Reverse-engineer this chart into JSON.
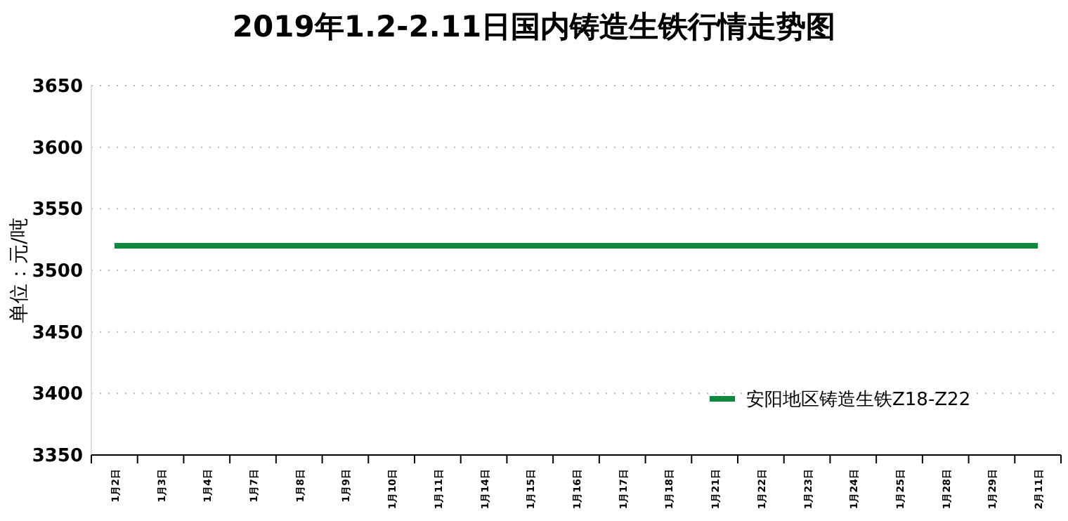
{
  "chart_data": {
    "type": "line",
    "title": "2019年1.2-2.11日国内铸造生铁行情走势图",
    "ylabel": "单位：元/吨",
    "categories": [
      "1月2日",
      "1月3日",
      "1月4日",
      "1月7日",
      "1月8日",
      "1月9日",
      "1月10日",
      "1月11日",
      "1月14日",
      "1月15日",
      "1月16日",
      "1月17日",
      "1月18日",
      "1月21日",
      "1月22日",
      "1月23日",
      "1月24日",
      "1月25日",
      "1月28日",
      "1月29日",
      "2月11日"
    ],
    "series": [
      {
        "name": "安阳地区铸造生铁Z18-Z22",
        "color": "#0f8a3c",
        "values": [
          3520,
          3520,
          3520,
          3520,
          3520,
          3520,
          3520,
          3520,
          3520,
          3520,
          3520,
          3520,
          3520,
          3520,
          3520,
          3520,
          3520,
          3520,
          3520,
          3520,
          3520
        ]
      }
    ],
    "ylim": [
      3350,
      3650
    ],
    "yticks": [
      3350,
      3400,
      3450,
      3500,
      3550,
      3600,
      3650
    ],
    "grid": "y",
    "legend": "bottom right",
    "marker": "none",
    "line_style": "solid"
  }
}
